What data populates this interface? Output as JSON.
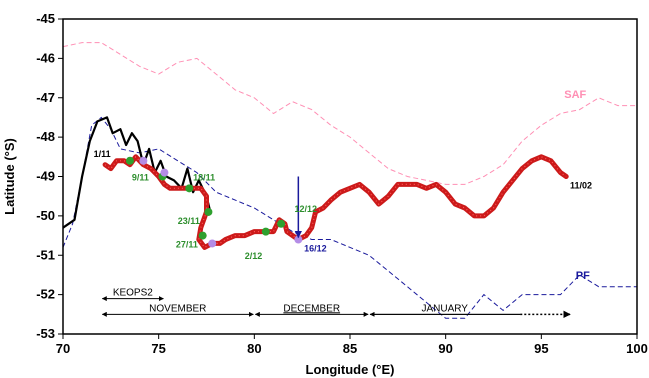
{
  "chart_data": {
    "type": "line",
    "xlabel": "Longitude (°E)",
    "ylabel": "Latitude (°S)",
    "xlim": [
      70,
      100
    ],
    "ylim": [
      -53,
      -45
    ],
    "xticks": [
      70,
      75,
      80,
      85,
      90,
      95,
      100
    ],
    "yticks": [
      -45,
      -46,
      -47,
      -48,
      -49,
      -50,
      -51,
      -52,
      -53
    ],
    "grid": false,
    "colors": {
      "saf": "#ff8fb4",
      "pf": "#1a1a9c",
      "track": "#cc1a1a",
      "black": "#000000",
      "green": "#2ea02e",
      "lilac": "#b48ce6",
      "arrow": "#1a1a9c"
    },
    "series": [
      {
        "name": "SAF",
        "style": "dashed",
        "points": [
          [
            70,
            -45.7
          ],
          [
            71,
            -45.6
          ],
          [
            72,
            -45.6
          ],
          [
            73,
            -45.9
          ],
          [
            74,
            -46.2
          ],
          [
            75,
            -46.4
          ],
          [
            76,
            -46.1
          ],
          [
            77,
            -46.0
          ],
          [
            78,
            -46.4
          ],
          [
            79,
            -46.8
          ],
          [
            80,
            -47.0
          ],
          [
            81,
            -47.4
          ],
          [
            82,
            -47.1
          ],
          [
            83,
            -47.3
          ],
          [
            84,
            -47.7
          ],
          [
            85,
            -48.0
          ],
          [
            86,
            -48.4
          ],
          [
            87,
            -48.8
          ],
          [
            88,
            -49.0
          ],
          [
            89,
            -49.1
          ],
          [
            90,
            -49.2
          ],
          [
            91,
            -49.2
          ],
          [
            92,
            -49.0
          ],
          [
            93,
            -48.7
          ],
          [
            94,
            -48.1
          ],
          [
            95,
            -47.7
          ],
          [
            96,
            -47.4
          ],
          [
            97,
            -47.3
          ],
          [
            98,
            -47.0
          ],
          [
            99,
            -47.2
          ],
          [
            100,
            -47.2
          ]
        ]
      },
      {
        "name": "PF",
        "style": "dashed",
        "points": [
          [
            70,
            -50.8
          ],
          [
            70.5,
            -50.2
          ],
          [
            71,
            -49.0
          ],
          [
            71.5,
            -47.7
          ],
          [
            72,
            -47.5
          ],
          [
            72.5,
            -47.8
          ],
          [
            73,
            -48.3
          ],
          [
            74,
            -48.4
          ],
          [
            75,
            -48.3
          ],
          [
            76,
            -48.6
          ],
          [
            77,
            -48.9
          ],
          [
            78,
            -49.4
          ],
          [
            79,
            -49.6
          ],
          [
            80,
            -49.8
          ],
          [
            81,
            -50.1
          ],
          [
            82,
            -50.4
          ],
          [
            83,
            -50.6
          ],
          [
            84,
            -50.6
          ],
          [
            85,
            -50.8
          ],
          [
            86,
            -51.0
          ],
          [
            87,
            -51.4
          ],
          [
            88,
            -51.8
          ],
          [
            89,
            -52.2
          ],
          [
            90,
            -52.6
          ],
          [
            91,
            -52.6
          ],
          [
            92,
            -52.0
          ],
          [
            93,
            -52.4
          ],
          [
            94,
            -52.0
          ],
          [
            95,
            -52.0
          ],
          [
            96,
            -52.0
          ],
          [
            97,
            -51.5
          ],
          [
            98,
            -51.8
          ],
          [
            99,
            -51.8
          ],
          [
            100,
            -51.8
          ]
        ]
      },
      {
        "name": "",
        "style": "solid-black",
        "points": [
          [
            70,
            -50.3
          ],
          [
            70.6,
            -50.1
          ],
          [
            71,
            -49.0
          ],
          [
            71.4,
            -48.1
          ],
          [
            71.8,
            -47.6
          ],
          [
            72.3,
            -47.5
          ],
          [
            72.6,
            -47.9
          ],
          [
            73,
            -47.8
          ],
          [
            73.3,
            -48.2
          ],
          [
            73.6,
            -47.9
          ],
          [
            73.9,
            -48.1
          ],
          [
            74.2,
            -48.7
          ],
          [
            74.5,
            -48.3
          ],
          [
            74.8,
            -48.9
          ],
          [
            75.1,
            -48.6
          ],
          [
            75.4,
            -49.0
          ],
          [
            75.8,
            -49.1
          ],
          [
            76.2,
            -49.3
          ],
          [
            76.5,
            -48.8
          ],
          [
            76.8,
            -49.4
          ],
          [
            77.1,
            -49.1
          ],
          [
            77.5,
            -49.5
          ],
          [
            77.7,
            -49.9
          ]
        ]
      },
      {
        "name": "",
        "style": "track",
        "points": [
          [
            72.2,
            -48.7
          ],
          [
            72.5,
            -48.8
          ],
          [
            72.8,
            -48.6
          ],
          [
            73.2,
            -48.6
          ],
          [
            73.5,
            -48.7
          ],
          [
            73.8,
            -48.5
          ],
          [
            74.2,
            -48.7
          ],
          [
            74.6,
            -48.8
          ],
          [
            75,
            -49.0
          ],
          [
            75.3,
            -49.2
          ],
          [
            75.6,
            -49.3
          ],
          [
            76,
            -49.3
          ],
          [
            76.4,
            -49.3
          ],
          [
            76.8,
            -49.3
          ],
          [
            77.2,
            -49.3
          ],
          [
            77.5,
            -49.5
          ],
          [
            77.5,
            -49.9
          ],
          [
            77.2,
            -50.3
          ],
          [
            77.1,
            -50.6
          ],
          [
            77.4,
            -50.8
          ],
          [
            77.8,
            -50.7
          ],
          [
            78.2,
            -50.7
          ],
          [
            78.5,
            -50.6
          ],
          [
            79,
            -50.5
          ],
          [
            79.5,
            -50.5
          ],
          [
            80,
            -50.4
          ],
          [
            80.5,
            -50.4
          ],
          [
            81,
            -50.4
          ],
          [
            81.3,
            -50.1
          ],
          [
            81.6,
            -50.2
          ],
          [
            81.7,
            -50.4
          ],
          [
            82,
            -50.5
          ],
          [
            82.3,
            -50.6
          ],
          [
            82.7,
            -50.5
          ],
          [
            83,
            -50.3
          ],
          [
            83.2,
            -49.9
          ],
          [
            83.6,
            -49.8
          ],
          [
            84,
            -49.6
          ],
          [
            84.5,
            -49.4
          ],
          [
            85,
            -49.3
          ],
          [
            85.5,
            -49.2
          ],
          [
            86,
            -49.4
          ],
          [
            86.5,
            -49.7
          ],
          [
            87,
            -49.5
          ],
          [
            87.5,
            -49.2
          ],
          [
            88,
            -49.2
          ],
          [
            88.5,
            -49.2
          ],
          [
            89,
            -49.3
          ],
          [
            89.5,
            -49.2
          ],
          [
            90,
            -49.4
          ],
          [
            90.5,
            -49.7
          ],
          [
            91,
            -49.8
          ],
          [
            91.5,
            -50.0
          ],
          [
            92,
            -50.0
          ],
          [
            92.5,
            -49.8
          ],
          [
            93,
            -49.4
          ],
          [
            93.5,
            -49.1
          ],
          [
            94,
            -48.8
          ],
          [
            94.5,
            -48.6
          ],
          [
            95,
            -48.5
          ],
          [
            95.5,
            -48.6
          ],
          [
            96,
            -48.9
          ],
          [
            96.3,
            -49.0
          ]
        ]
      }
    ],
    "markers": [
      {
        "color": "green",
        "x": [
          73.5,
          75.2,
          76.6,
          77.6,
          77.3,
          80.6,
          81.4
        ],
        "y": [
          -48.6,
          -49.0,
          -49.3,
          -49.9,
          -50.5,
          -50.4,
          -50.2
        ]
      },
      {
        "color": "lilac",
        "x": [
          74.2,
          75.3,
          77.8,
          82.3
        ],
        "y": [
          -48.6,
          -48.9,
          -50.7,
          -50.6
        ]
      }
    ],
    "arrow": {
      "x": 82.3,
      "y_from": -49.0,
      "y_to": -50.6
    },
    "date_labels": [
      {
        "text": "1/11",
        "x": 71.6,
        "y": -48.5,
        "color": "black"
      },
      {
        "text": "9/11",
        "x": 73.6,
        "y": -49.1,
        "color": "green"
      },
      {
        "text": "18/11",
        "x": 76.8,
        "y": -49.1,
        "color": "green"
      },
      {
        "text": "23/11",
        "x": 76.0,
        "y": -50.2,
        "color": "green"
      },
      {
        "text": "27/11",
        "x": 75.9,
        "y": -50.8,
        "color": "green"
      },
      {
        "text": "2/12",
        "x": 79.5,
        "y": -51.1,
        "color": "green"
      },
      {
        "text": "12/12",
        "x": 82.1,
        "y": -49.9,
        "color": "green"
      },
      {
        "text": "16/12",
        "x": 82.6,
        "y": -50.9,
        "color": "navy"
      },
      {
        "text": "11/02",
        "x": 96.5,
        "y": -49.3,
        "color": "black"
      }
    ],
    "front_labels": [
      {
        "text": "SAF",
        "x": 96.2,
        "y": -47.0,
        "color": "saf"
      },
      {
        "text": "PF",
        "x": 96.8,
        "y": -51.6,
        "color": "pf"
      }
    ],
    "periods": [
      {
        "text": "KEOPS2",
        "x_start": 72.0,
        "x_end": 75.3,
        "y": -52.1,
        "underline": false,
        "dotted_end": false
      },
      {
        "text": "NOVEMBER",
        "x_start": 72.0,
        "x_end": 80.0,
        "y": -52.5,
        "underline": false,
        "dotted_end": false
      },
      {
        "text": "DECEMBER",
        "x_start": 80.0,
        "x_end": 86.0,
        "y": -52.5,
        "underline": true,
        "dotted_end": false
      },
      {
        "text": "JANUARY",
        "x_start": 86.0,
        "x_end": 96.5,
        "y": -52.5,
        "underline": false,
        "dotted_end": true,
        "solid_end": 93.9
      }
    ]
  }
}
